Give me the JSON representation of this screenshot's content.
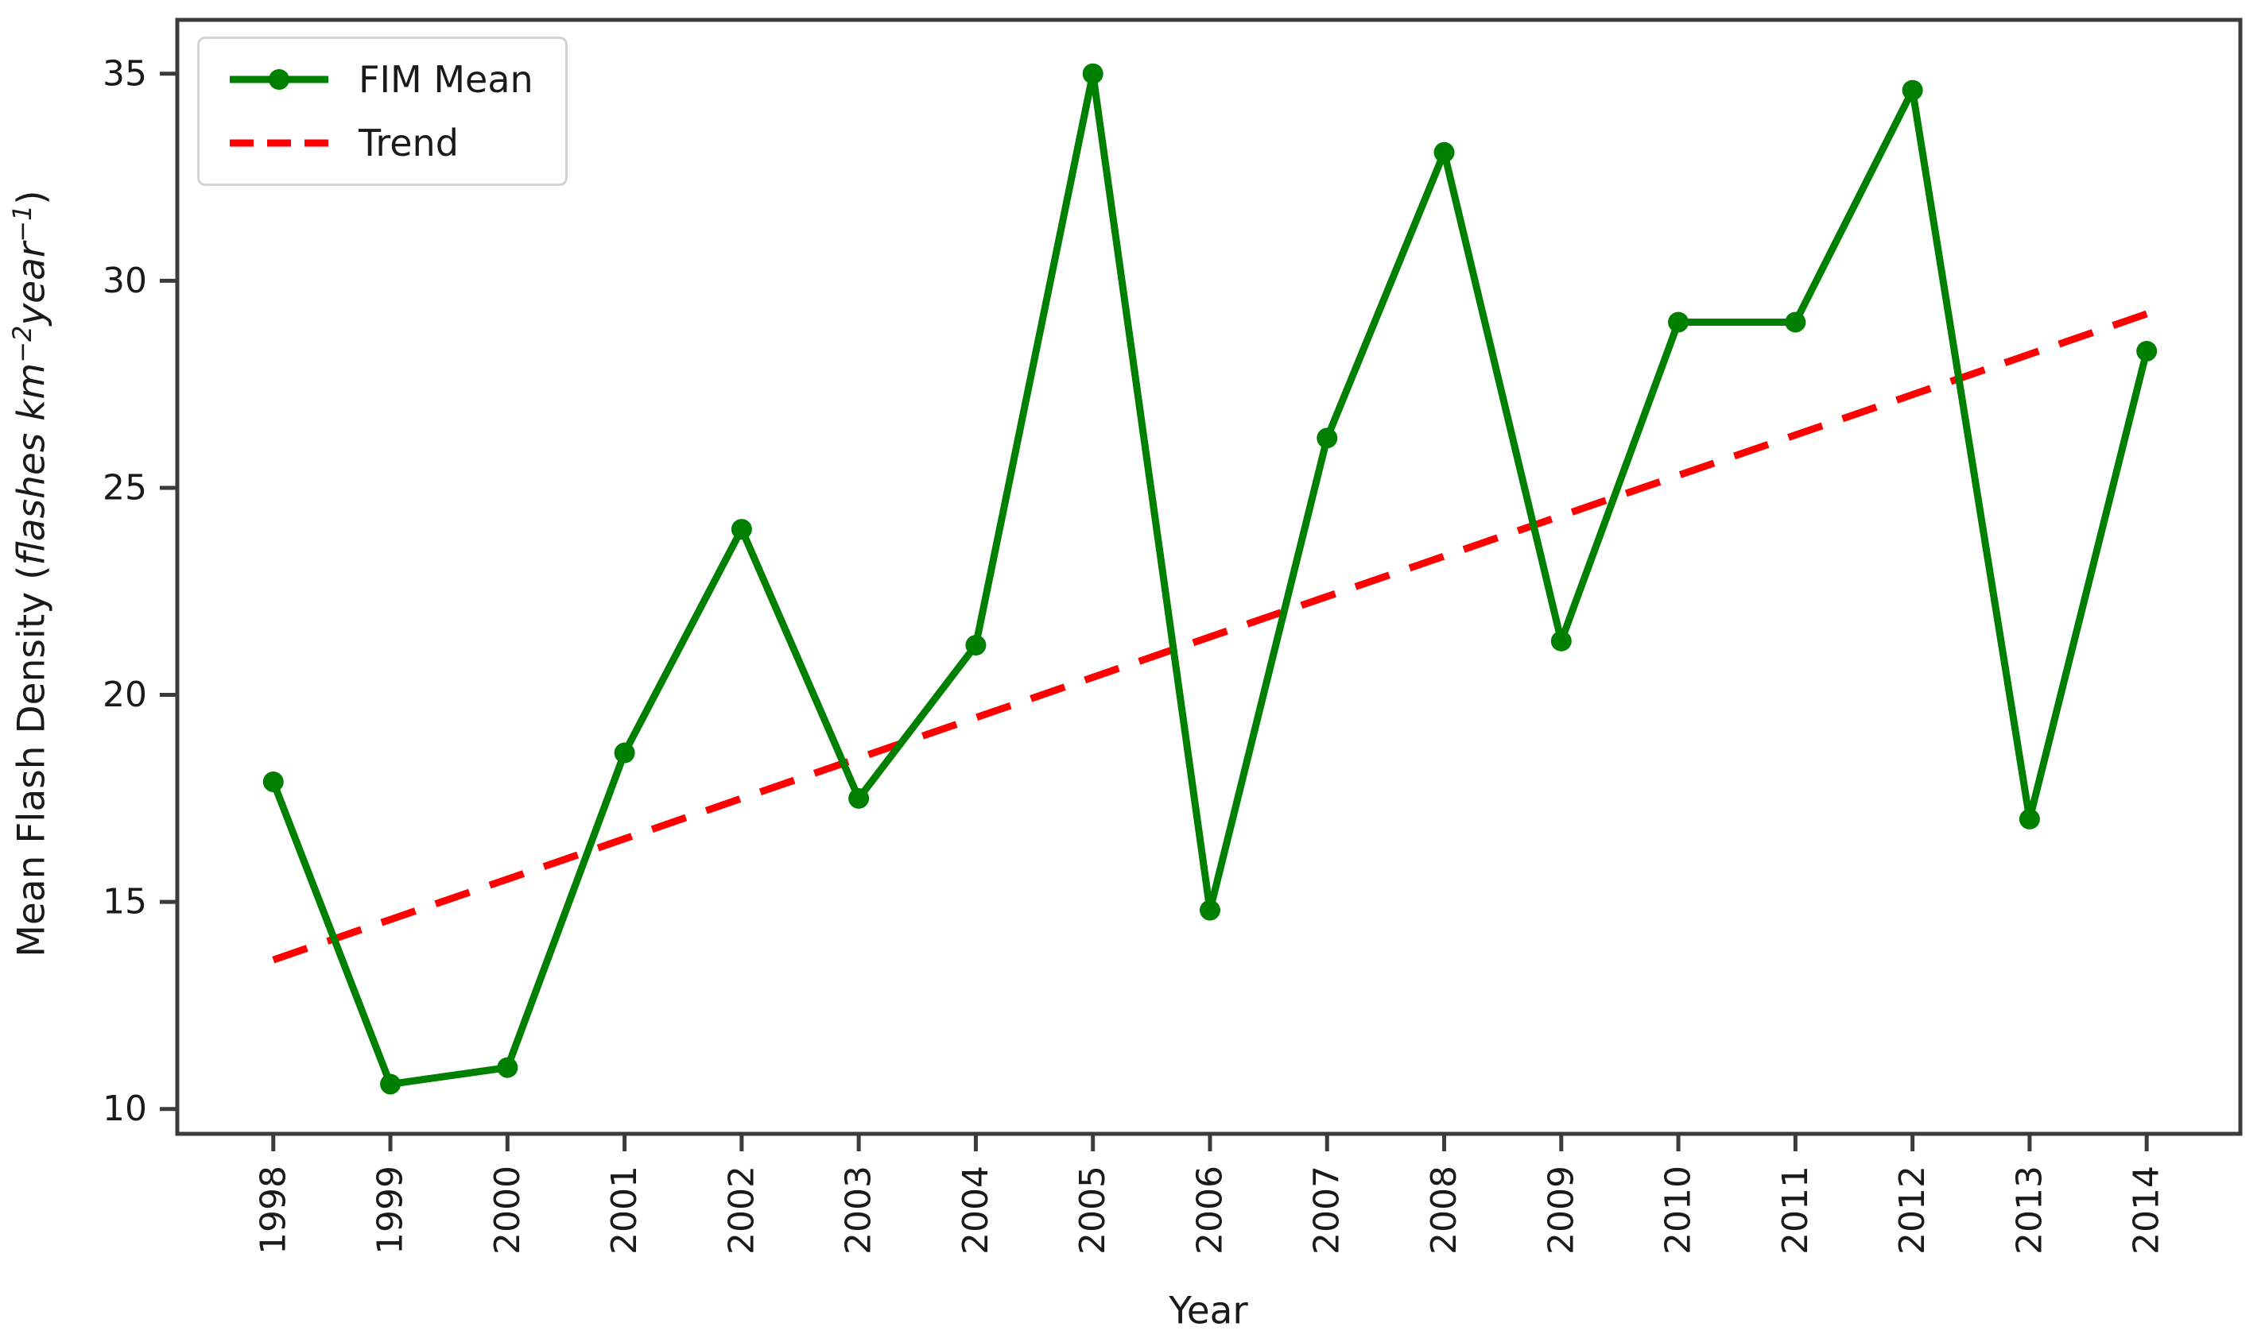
{
  "figure": {
    "xlabel": "Year",
    "ylabel": "Mean Flash Density (flashes km⁻²year⁻¹)",
    "ylabel_parts": [
      {
        "text": "Mean Flash Density (",
        "italic": false,
        "sup": false
      },
      {
        "text": "flashes km",
        "italic": true,
        "sup": false
      },
      {
        "text": "−2",
        "italic": true,
        "sup": true
      },
      {
        "text": "year",
        "italic": true,
        "sup": false
      },
      {
        "text": "−1",
        "italic": true,
        "sup": true
      },
      {
        "text": ")",
        "italic": false,
        "sup": false
      }
    ],
    "legend": {
      "items": [
        {
          "label": "FIM Mean"
        },
        {
          "label": "Trend"
        }
      ]
    }
  },
  "chart_data": {
    "type": "line",
    "title": "",
    "xlabel": "Year",
    "ylabel": "Mean Flash Density (flashes km^-2 year^-1)",
    "categories": [
      1998,
      1999,
      2000,
      2001,
      2002,
      2003,
      2004,
      2005,
      2006,
      2007,
      2008,
      2009,
      2010,
      2011,
      2012,
      2013,
      2014
    ],
    "series": [
      {
        "name": "FIM Mean",
        "type": "line",
        "color": "#008000",
        "marker": "o",
        "linestyle": "solid",
        "values": [
          17.9,
          10.6,
          11.0,
          18.6,
          24.0,
          17.5,
          21.2,
          35.0,
          14.8,
          26.2,
          33.1,
          21.3,
          29.0,
          29.0,
          34.6,
          17.0,
          28.3
        ]
      },
      {
        "name": "Trend",
        "type": "line",
        "color": "#ff0000",
        "marker": "none",
        "linestyle": "dashed",
        "x": [
          1998,
          2014
        ],
        "values": [
          13.6,
          29.2
        ]
      }
    ],
    "xticks": [
      "1998",
      "1999",
      "2000",
      "2001",
      "2002",
      "2003",
      "2004",
      "2005",
      "2006",
      "2007",
      "2008",
      "2009",
      "2010",
      "2011",
      "2012",
      "2013",
      "2014"
    ],
    "yticks": [
      10,
      15,
      20,
      25,
      30,
      35
    ],
    "xlim": [
      1997.18,
      2014.8
    ],
    "ylim": [
      9.4,
      36.3
    ],
    "grid": false,
    "legend_position": "upper left",
    "xtick_rotation": 90,
    "axis_color": "#3b3b3b",
    "text_color": "#1a1a1a"
  }
}
